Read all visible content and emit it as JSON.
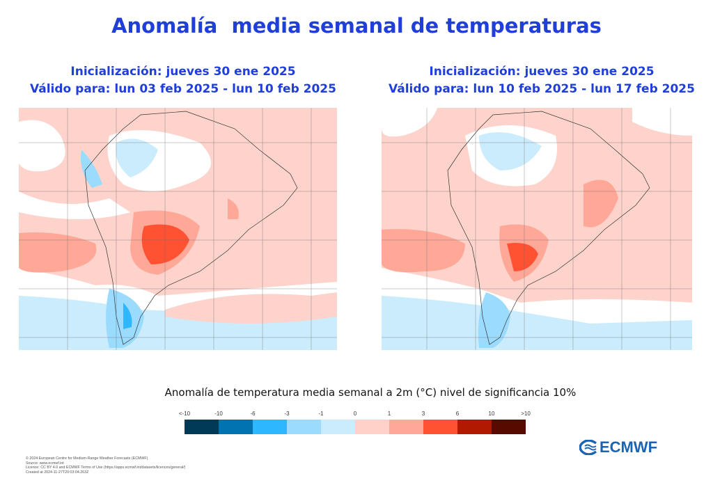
{
  "title": "Anomalía  media semanal de temperaturas",
  "panels": [
    {
      "init": "Inicialización: jueves 30 ene 2025",
      "valid": "Válido para: lun 03 feb 2025 - lun 10 feb 2025"
    },
    {
      "init": "Inicialización: jueves 30 ene 2025",
      "valid": "Válido para: lun 10 feb 2025 - lun 17 feb 2025"
    }
  ],
  "legend": {
    "caption": "Anomalía de temperatura media semanal a 2m (°C) nivel de significancia 10%",
    "labels": [
      "<-10",
      "-10",
      "-6",
      "-3",
      "-1",
      "0",
      "1",
      "3",
      "6",
      "10",
      ">10"
    ],
    "colors": [
      "#003a57",
      "#0073b0",
      "#2db8fd",
      "#9bdbfd",
      "#cbecfd",
      "#ffd1c9",
      "#ffa898",
      "#ff5233",
      "#b21a00",
      "#560a00"
    ]
  },
  "footer": [
    "© 2024 European Centre for Medium-Range Weather Forecasts (ECMWF)",
    "Source: www.ecmwf.int",
    "Licence: CC BY 4.0 and ECMWF Terms of Use (https://apps.ecmwf.int/datasets/licences/general/)",
    "Created at 2024-11-27T20:03:04.263Z"
  ],
  "logo": "ECMWF"
}
